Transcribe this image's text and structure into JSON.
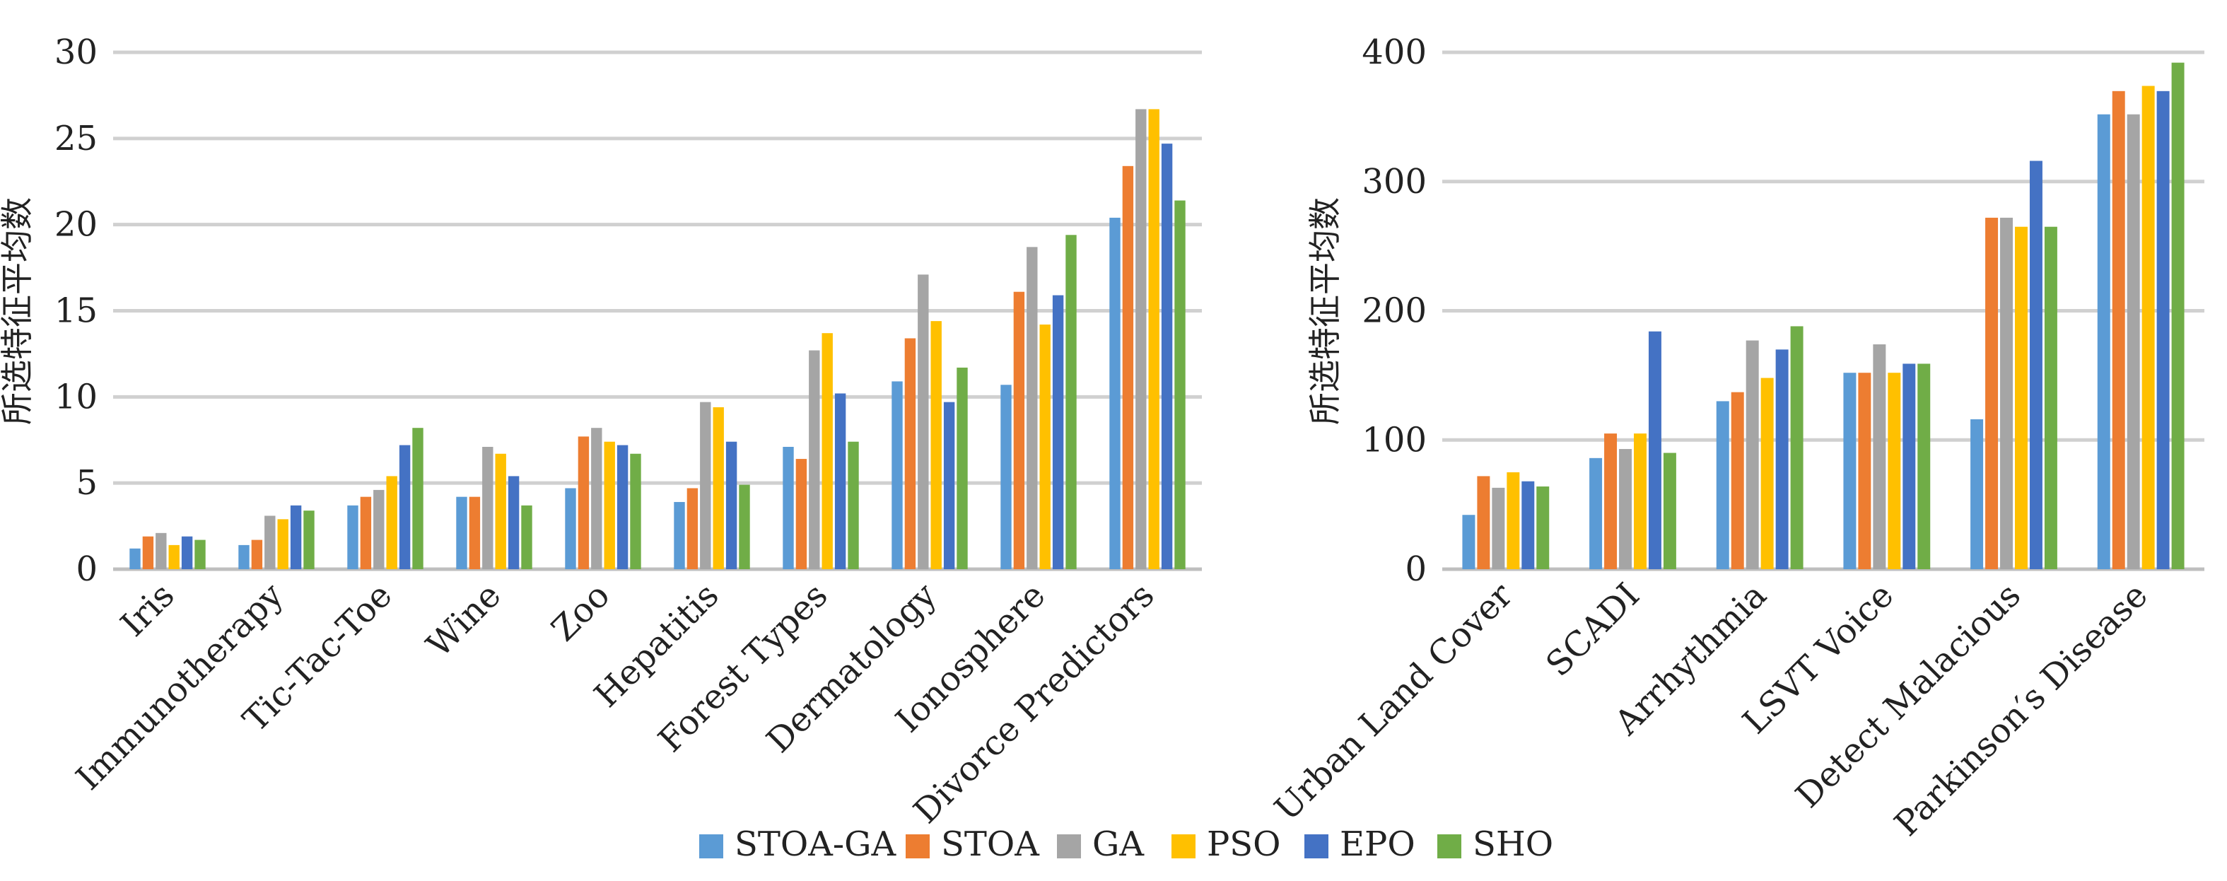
{
  "chart_data": [
    {
      "type": "bar",
      "ylabel": "所选特征平均数",
      "ylim": [
        0,
        30
      ],
      "yticks": [
        0,
        5,
        10,
        15,
        20,
        25,
        30
      ],
      "grid": true,
      "categories": [
        "Iris",
        "Immunotherapy",
        "Tic-Tac-Toe",
        "Wine",
        "Zoo",
        "Hepatitis",
        "Forest Types",
        "Dermatology",
        "Ionosphere",
        "Divorce Predictors"
      ],
      "series": [
        {
          "name": "STOA-GA",
          "values": [
            1.2,
            1.4,
            3.7,
            4.2,
            4.7,
            3.9,
            7.1,
            10.9,
            10.7,
            20.4
          ]
        },
        {
          "name": "STOA",
          "values": [
            1.9,
            1.7,
            4.2,
            4.2,
            7.7,
            4.7,
            6.4,
            13.4,
            16.1,
            23.4
          ]
        },
        {
          "name": "GA",
          "values": [
            2.1,
            3.1,
            4.6,
            7.1,
            8.2,
            9.7,
            12.7,
            17.1,
            18.7,
            26.7
          ]
        },
        {
          "name": "PSO",
          "values": [
            1.4,
            2.9,
            5.4,
            6.7,
            7.4,
            9.4,
            13.7,
            14.4,
            14.2,
            26.7
          ]
        },
        {
          "name": "EPO",
          "values": [
            1.9,
            3.7,
            7.2,
            5.4,
            7.2,
            7.4,
            10.2,
            9.7,
            15.9,
            24.7
          ]
        },
        {
          "name": "SHO",
          "values": [
            1.7,
            3.4,
            8.2,
            3.7,
            6.7,
            4.9,
            7.4,
            11.7,
            19.4,
            21.4
          ]
        }
      ]
    },
    {
      "type": "bar",
      "ylabel": "所选特征平均数",
      "ylim": [
        0,
        400
      ],
      "yticks": [
        0,
        100,
        200,
        300,
        400
      ],
      "grid": true,
      "categories": [
        "Urban Land Cover",
        "SCADI",
        "Arrhythmia",
        "LSVT Voice",
        "Detect Malacious",
        "Parkinson′s Disease"
      ],
      "series": [
        {
          "name": "STOA-GA",
          "values": [
            42,
            86,
            130,
            152,
            116,
            352
          ]
        },
        {
          "name": "STOA",
          "values": [
            72,
            105,
            137,
            152,
            272,
            370
          ]
        },
        {
          "name": "GA",
          "values": [
            63,
            93,
            177,
            174,
            272,
            352
          ]
        },
        {
          "name": "PSO",
          "values": [
            75,
            105,
            148,
            152,
            265,
            374
          ]
        },
        {
          "name": "EPO",
          "values": [
            68,
            184,
            170,
            159,
            316,
            370
          ]
        },
        {
          "name": "SHO",
          "values": [
            64,
            90,
            188,
            159,
            265,
            392
          ]
        }
      ]
    }
  ],
  "legend": {
    "position": "bottom",
    "items": [
      {
        "name": "STOA-GA",
        "color": "#5B9BD5"
      },
      {
        "name": "STOA",
        "color": "#ED7D31"
      },
      {
        "name": "GA",
        "color": "#A5A5A5"
      },
      {
        "name": "PSO",
        "color": "#FFC000"
      },
      {
        "name": "EPO",
        "color": "#4472C4"
      },
      {
        "name": "SHO",
        "color": "#70AD47"
      }
    ]
  },
  "colors": {
    "gridline": "#D0D0D0",
    "axis": "#BFBFBF"
  }
}
